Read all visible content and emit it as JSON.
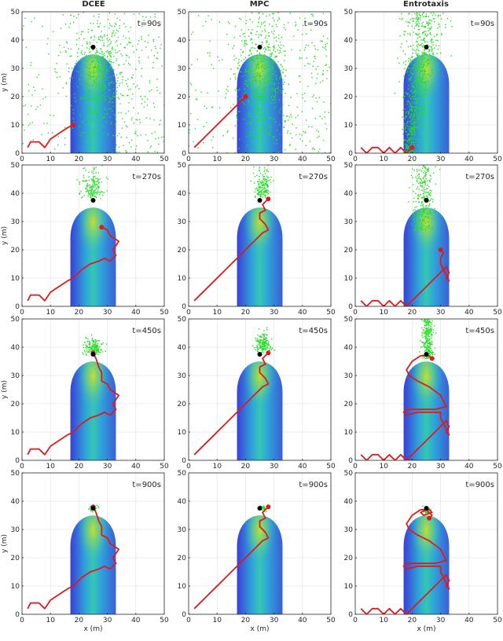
{
  "figure": {
    "columns": [
      "DCEE",
      "MPC",
      "Entrotaxis"
    ],
    "time_labels": [
      "t=90s",
      "t=270s",
      "t=450s",
      "t=900s"
    ],
    "xlabel": "x (m)",
    "ylabel": "y (m)",
    "xticks": [
      "0",
      "10",
      "20",
      "30",
      "40",
      "50"
    ],
    "yticks": [
      "0",
      "10",
      "20",
      "30",
      "40",
      "50"
    ]
  },
  "colors": {
    "plume_low": "#3a3fd8",
    "plume_mid": "#2fa8d8",
    "plume_high": "#c8e02a",
    "particles": "#1ee01e",
    "trajectory": "#e01a1a",
    "source": "#000000",
    "grid": "#e6e6e6"
  },
  "chart_data": {
    "type": "scatter",
    "layout": "4 rows (time) x 3 columns (strategy)",
    "xlim": [
      0,
      50
    ],
    "ylim": [
      0,
      50
    ],
    "xlabel": "x (m)",
    "ylabel": "y (m)",
    "source": {
      "x": 25,
      "y": 37.5
    },
    "plume": {
      "x_range": [
        17,
        33
      ],
      "y_base": 0,
      "apex_y": 38
    },
    "panels": [
      {
        "row": 0,
        "col": 0,
        "label": "t=90s",
        "particles": {
          "xmin": 0,
          "xmax": 50,
          "ymin": 0,
          "ymax": 50,
          "cx": 28,
          "cy": 28,
          "spread": "wide"
        },
        "path": [
          [
            2,
            2
          ],
          [
            3,
            4
          ],
          [
            6,
            4
          ],
          [
            8,
            2
          ],
          [
            10,
            5
          ],
          [
            13,
            7
          ],
          [
            16,
            9
          ],
          [
            18,
            10
          ]
        ]
      },
      {
        "row": 0,
        "col": 1,
        "label": "t=90s",
        "particles": {
          "xmin": 0,
          "xmax": 50,
          "ymin": 0,
          "ymax": 50,
          "cx": 26,
          "cy": 28,
          "spread": "wide"
        },
        "path": [
          [
            2,
            2
          ],
          [
            6,
            6
          ],
          [
            10,
            10
          ],
          [
            14,
            14
          ],
          [
            18,
            18
          ],
          [
            20,
            20
          ]
        ]
      },
      {
        "row": 0,
        "col": 2,
        "label": "t=90s",
        "particles": {
          "xmin": 13,
          "xmax": 33,
          "ymin": 0,
          "ymax": 50,
          "cx": 22,
          "cy": 25,
          "spread": "narrow"
        },
        "path": [
          [
            2,
            2
          ],
          [
            4,
            0
          ],
          [
            6,
            2
          ],
          [
            8,
            2
          ],
          [
            10,
            0
          ],
          [
            12,
            2
          ],
          [
            14,
            0
          ],
          [
            16,
            2
          ],
          [
            18,
            0
          ],
          [
            20,
            2
          ]
        ]
      },
      {
        "row": 1,
        "col": 0,
        "label": "t=270s",
        "particles": {
          "xmin": 21,
          "xmax": 31,
          "ymin": 32,
          "ymax": 50,
          "cx": 25,
          "cy": 40,
          "spread": "cluster"
        },
        "path": [
          [
            2,
            2
          ],
          [
            3,
            4
          ],
          [
            6,
            4
          ],
          [
            8,
            2
          ],
          [
            10,
            5
          ],
          [
            13,
            7
          ],
          [
            16,
            9
          ],
          [
            18,
            10
          ],
          [
            21,
            13
          ],
          [
            24,
            15
          ],
          [
            27,
            16
          ],
          [
            29,
            17
          ],
          [
            31,
            16
          ],
          [
            33,
            18
          ],
          [
            32,
            20
          ],
          [
            34,
            23
          ],
          [
            31,
            25
          ],
          [
            30,
            27
          ],
          [
            28,
            28
          ]
        ]
      },
      {
        "row": 1,
        "col": 1,
        "label": "t=270s",
        "particles": {
          "xmin": 23,
          "xmax": 30,
          "ymin": 32,
          "ymax": 50,
          "cx": 26,
          "cy": 40,
          "spread": "cluster"
        },
        "path": [
          [
            2,
            2
          ],
          [
            8,
            8
          ],
          [
            14,
            14
          ],
          [
            20,
            20
          ],
          [
            24,
            24
          ],
          [
            26,
            26
          ],
          [
            28,
            27
          ],
          [
            27,
            29
          ],
          [
            25,
            31
          ],
          [
            25,
            33
          ],
          [
            27,
            34
          ],
          [
            26,
            36
          ],
          [
            27,
            37
          ],
          [
            28,
            38
          ]
        ]
      },
      {
        "row": 1,
        "col": 2,
        "label": "t=270s",
        "particles": {
          "xmin": 20,
          "xmax": 29,
          "ymin": 27,
          "ymax": 50,
          "cx": 24,
          "cy": 42,
          "spread": "column"
        },
        "path": [
          [
            2,
            2
          ],
          [
            4,
            0
          ],
          [
            6,
            2
          ],
          [
            8,
            2
          ],
          [
            10,
            0
          ],
          [
            12,
            2
          ],
          [
            14,
            0
          ],
          [
            16,
            2
          ],
          [
            18,
            0
          ],
          [
            20,
            2
          ],
          [
            22,
            4
          ],
          [
            24,
            6
          ],
          [
            26,
            8
          ],
          [
            28,
            10
          ],
          [
            30,
            12
          ],
          [
            32,
            14
          ],
          [
            33,
            12
          ],
          [
            32,
            10
          ],
          [
            33,
            9
          ],
          [
            32,
            11
          ],
          [
            31,
            13
          ],
          [
            30,
            15
          ],
          [
            30,
            17
          ],
          [
            31,
            19
          ],
          [
            30,
            20
          ]
        ]
      },
      {
        "row": 2,
        "col": 0,
        "label": "t=450s",
        "particles": {
          "xmin": 21,
          "xmax": 30,
          "ymin": 35,
          "ymax": 45,
          "cx": 25,
          "cy": 39,
          "spread": "cluster"
        },
        "path": [
          [
            2,
            2
          ],
          [
            3,
            4
          ],
          [
            6,
            4
          ],
          [
            8,
            2
          ],
          [
            10,
            5
          ],
          [
            13,
            7
          ],
          [
            16,
            9
          ],
          [
            18,
            10
          ],
          [
            21,
            13
          ],
          [
            24,
            15
          ],
          [
            27,
            16
          ],
          [
            29,
            17
          ],
          [
            31,
            16
          ],
          [
            33,
            18
          ],
          [
            32,
            20
          ],
          [
            34,
            23
          ],
          [
            31,
            25
          ],
          [
            30,
            27
          ],
          [
            28,
            28
          ],
          [
            28,
            31
          ],
          [
            27,
            33
          ],
          [
            26,
            36
          ],
          [
            25,
            38
          ]
        ]
      },
      {
        "row": 2,
        "col": 1,
        "label": "t=450s",
        "particles": {
          "xmin": 23,
          "xmax": 30,
          "ymin": 35,
          "ymax": 47,
          "cx": 26,
          "cy": 40,
          "spread": "cluster"
        },
        "path": [
          [
            2,
            2
          ],
          [
            8,
            8
          ],
          [
            14,
            14
          ],
          [
            20,
            20
          ],
          [
            24,
            24
          ],
          [
            26,
            26
          ],
          [
            28,
            27
          ],
          [
            27,
            29
          ],
          [
            25,
            31
          ],
          [
            25,
            33
          ],
          [
            27,
            34
          ],
          [
            26,
            36
          ],
          [
            27,
            37
          ],
          [
            28,
            38
          ]
        ]
      },
      {
        "row": 2,
        "col": 2,
        "label": "t=450s",
        "particles": {
          "xmin": 23,
          "xmax": 28,
          "ymin": 36,
          "ymax": 50,
          "cx": 25.5,
          "cy": 42,
          "spread": "column"
        },
        "path": [
          [
            2,
            2
          ],
          [
            4,
            0
          ],
          [
            6,
            2
          ],
          [
            8,
            2
          ],
          [
            10,
            0
          ],
          [
            12,
            2
          ],
          [
            14,
            0
          ],
          [
            16,
            2
          ],
          [
            18,
            0
          ],
          [
            20,
            2
          ],
          [
            22,
            4
          ],
          [
            24,
            6
          ],
          [
            26,
            8
          ],
          [
            28,
            10
          ],
          [
            30,
            12
          ],
          [
            32,
            14
          ],
          [
            33,
            12
          ],
          [
            32,
            10
          ],
          [
            33,
            9
          ],
          [
            32,
            11
          ],
          [
            31,
            13
          ],
          [
            30,
            15
          ],
          [
            30,
            17
          ],
          [
            26,
            17
          ],
          [
            22,
            17
          ],
          [
            18,
            16
          ],
          [
            17,
            17
          ],
          [
            18,
            18
          ],
          [
            22,
            18
          ],
          [
            28,
            18
          ],
          [
            32,
            19
          ],
          [
            30,
            23
          ],
          [
            26,
            26
          ],
          [
            22,
            28
          ],
          [
            19,
            30
          ],
          [
            18,
            32
          ],
          [
            20,
            35
          ],
          [
            23,
            37
          ],
          [
            26,
            37
          ],
          [
            27,
            36
          ]
        ]
      },
      {
        "row": 3,
        "col": 0,
        "label": "t=900s",
        "particles": {
          "xmin": 23,
          "xmax": 27,
          "ymin": 36,
          "ymax": 39,
          "cx": 25,
          "cy": 37.5,
          "spread": "tight"
        },
        "path": [
          [
            2,
            2
          ],
          [
            3,
            4
          ],
          [
            6,
            4
          ],
          [
            8,
            2
          ],
          [
            10,
            5
          ],
          [
            13,
            7
          ],
          [
            16,
            9
          ],
          [
            18,
            10
          ],
          [
            21,
            13
          ],
          [
            24,
            15
          ],
          [
            27,
            16
          ],
          [
            29,
            17
          ],
          [
            31,
            16
          ],
          [
            33,
            18
          ],
          [
            32,
            20
          ],
          [
            34,
            23
          ],
          [
            31,
            25
          ],
          [
            30,
            27
          ],
          [
            28,
            28
          ],
          [
            28,
            31
          ],
          [
            27,
            33
          ],
          [
            26,
            36
          ],
          [
            25,
            38
          ]
        ]
      },
      {
        "row": 3,
        "col": 1,
        "label": "t=900s",
        "particles": {
          "xmin": 24,
          "xmax": 28,
          "ymin": 36,
          "ymax": 39,
          "cx": 26,
          "cy": 37.5,
          "spread": "tight"
        },
        "path": [
          [
            2,
            2
          ],
          [
            8,
            8
          ],
          [
            14,
            14
          ],
          [
            20,
            20
          ],
          [
            24,
            24
          ],
          [
            26,
            26
          ],
          [
            28,
            27
          ],
          [
            27,
            29
          ],
          [
            25,
            31
          ],
          [
            25,
            33
          ],
          [
            27,
            34
          ],
          [
            26,
            36
          ],
          [
            27,
            37
          ],
          [
            28,
            38
          ]
        ]
      },
      {
        "row": 3,
        "col": 2,
        "label": "t=900s",
        "particles": {
          "xmin": 23,
          "xmax": 27,
          "ymin": 35,
          "ymax": 38,
          "cx": 25,
          "cy": 36.5,
          "spread": "tight"
        },
        "path": [
          [
            2,
            2
          ],
          [
            4,
            0
          ],
          [
            6,
            2
          ],
          [
            8,
            2
          ],
          [
            10,
            0
          ],
          [
            12,
            2
          ],
          [
            14,
            0
          ],
          [
            16,
            2
          ],
          [
            18,
            0
          ],
          [
            20,
            2
          ],
          [
            22,
            4
          ],
          [
            24,
            6
          ],
          [
            26,
            8
          ],
          [
            28,
            10
          ],
          [
            30,
            12
          ],
          [
            32,
            14
          ],
          [
            33,
            12
          ],
          [
            32,
            10
          ],
          [
            33,
            9
          ],
          [
            32,
            11
          ],
          [
            31,
            13
          ],
          [
            30,
            15
          ],
          [
            30,
            17
          ],
          [
            26,
            17
          ],
          [
            22,
            17
          ],
          [
            18,
            16
          ],
          [
            17,
            17
          ],
          [
            18,
            18
          ],
          [
            22,
            18
          ],
          [
            28,
            18
          ],
          [
            32,
            19
          ],
          [
            30,
            23
          ],
          [
            26,
            26
          ],
          [
            22,
            28
          ],
          [
            19,
            30
          ],
          [
            18,
            32
          ],
          [
            20,
            35
          ],
          [
            23,
            37
          ],
          [
            26,
            37
          ],
          [
            27,
            36
          ],
          [
            24,
            35
          ],
          [
            23,
            36
          ],
          [
            25,
            37
          ],
          [
            27,
            35
          ],
          [
            26,
            34
          ]
        ]
      }
    ]
  }
}
